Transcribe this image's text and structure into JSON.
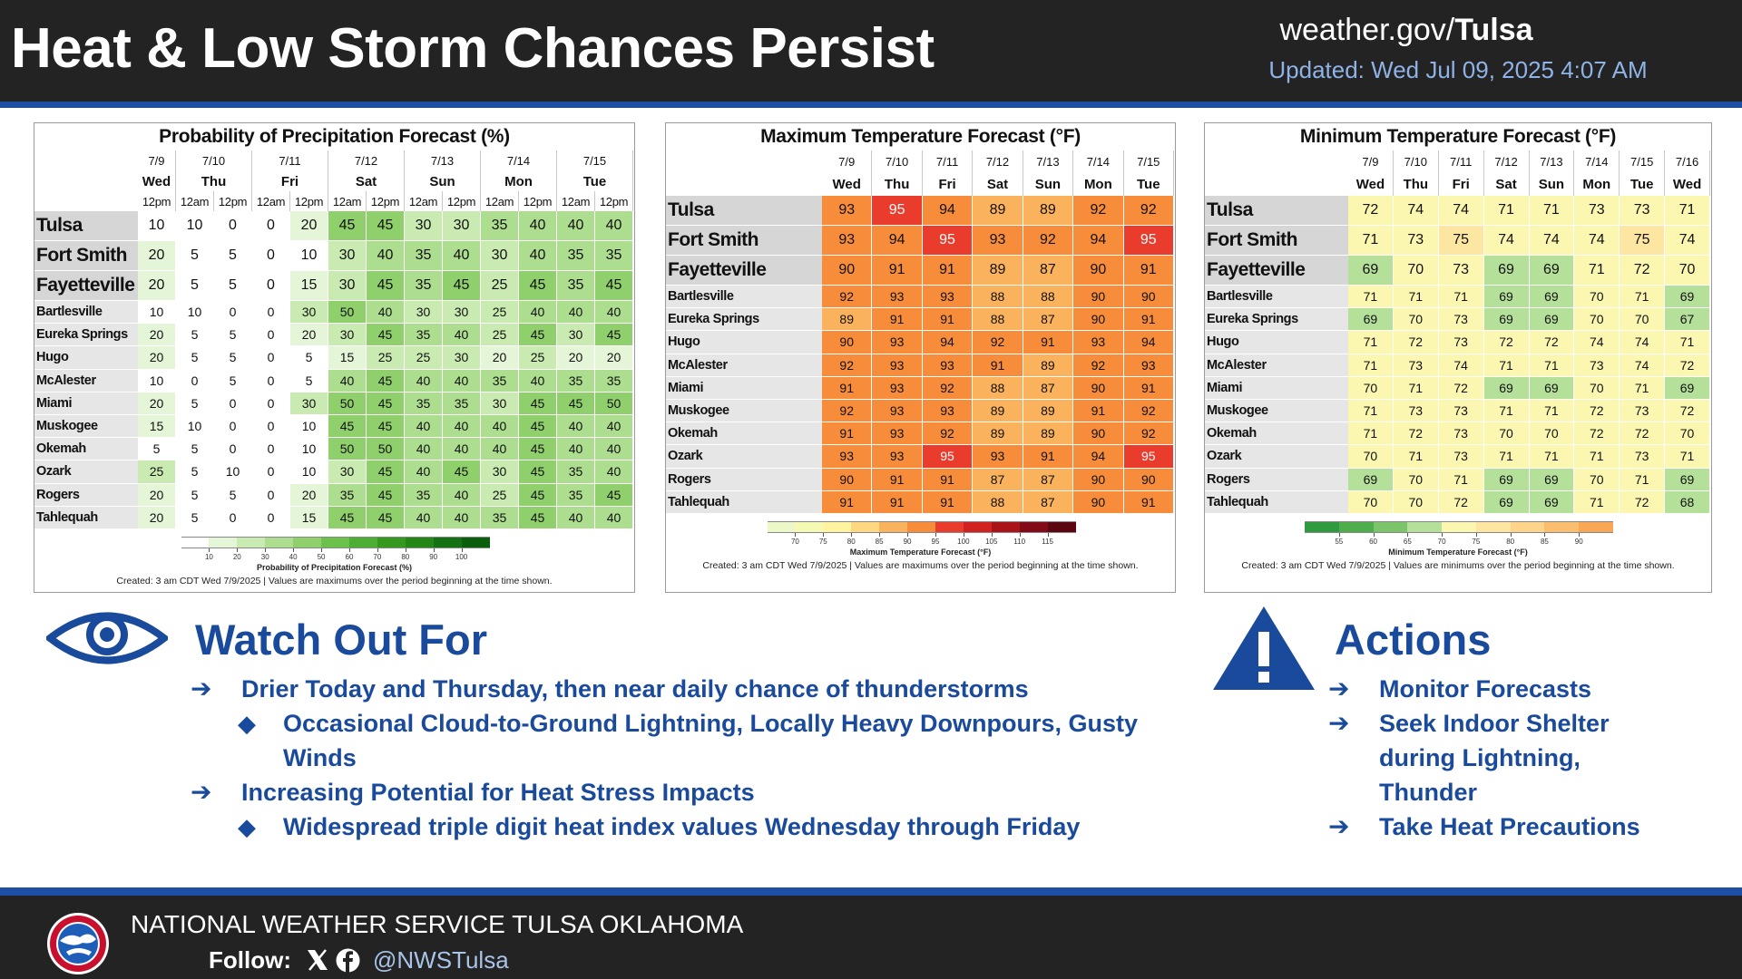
{
  "header": {
    "title": "Heat & Low Storm Chances Persist",
    "site_prefix": "weather.gov/",
    "site_office": "Tulsa",
    "updated": "Updated: Wed Jul 09, 2025 4:07 AM"
  },
  "tables": [
    {
      "title": "Probability of Precipitation Forecast (%)",
      "columns": [
        {
          "date": "7/9",
          "day": "Wed",
          "times": [
            "12pm"
          ]
        },
        {
          "date": "7/10",
          "day": "Thu",
          "times": [
            "12am",
            "12pm"
          ]
        },
        {
          "date": "7/11",
          "day": "Fri",
          "times": [
            "12am",
            "12pm"
          ]
        },
        {
          "date": "7/12",
          "day": "Sat",
          "times": [
            "12am",
            "12pm"
          ]
        },
        {
          "date": "7/13",
          "day": "Sun",
          "times": [
            "12am",
            "12pm"
          ]
        },
        {
          "date": "7/14",
          "day": "Mon",
          "times": [
            "12am",
            "12pm"
          ]
        },
        {
          "date": "7/15",
          "day": "Tue",
          "times": [
            "12am",
            "12pm"
          ]
        }
      ],
      "rows": [
        {
          "name": "Tulsa",
          "values": [
            10,
            10,
            0,
            0,
            20,
            45,
            45,
            30,
            30,
            35,
            40,
            40,
            40
          ]
        },
        {
          "name": "Fort Smith",
          "values": [
            20,
            5,
            5,
            0,
            10,
            30,
            40,
            35,
            40,
            30,
            40,
            35,
            35
          ]
        },
        {
          "name": "Fayetteville",
          "values": [
            20,
            5,
            5,
            0,
            15,
            30,
            45,
            35,
            45,
            25,
            45,
            35,
            45
          ]
        },
        {
          "name": "Bartlesville",
          "values": [
            10,
            10,
            0,
            0,
            30,
            50,
            40,
            30,
            30,
            25,
            40,
            40,
            40
          ]
        },
        {
          "name": "Eureka Springs",
          "values": [
            20,
            5,
            5,
            0,
            20,
            30,
            45,
            35,
            40,
            25,
            45,
            30,
            45
          ]
        },
        {
          "name": "Hugo",
          "values": [
            20,
            5,
            5,
            0,
            5,
            15,
            25,
            25,
            30,
            20,
            25,
            20,
            20
          ]
        },
        {
          "name": "McAlester",
          "values": [
            10,
            0,
            5,
            0,
            5,
            40,
            45,
            40,
            40,
            35,
            40,
            35,
            35
          ]
        },
        {
          "name": "Miami",
          "values": [
            20,
            5,
            0,
            0,
            30,
            50,
            45,
            35,
            35,
            30,
            45,
            45,
            50
          ]
        },
        {
          "name": "Muskogee",
          "values": [
            15,
            10,
            0,
            0,
            10,
            45,
            45,
            40,
            40,
            40,
            45,
            40,
            40
          ]
        },
        {
          "name": "Okemah",
          "values": [
            5,
            5,
            0,
            0,
            10,
            50,
            50,
            40,
            40,
            40,
            45,
            40,
            40
          ]
        },
        {
          "name": "Ozark",
          "values": [
            25,
            5,
            10,
            0,
            10,
            30,
            45,
            40,
            45,
            30,
            45,
            35,
            40
          ]
        },
        {
          "name": "Rogers",
          "values": [
            20,
            5,
            5,
            0,
            20,
            35,
            45,
            35,
            40,
            25,
            45,
            35,
            45
          ]
        },
        {
          "name": "Tahlequah",
          "values": [
            20,
            5,
            0,
            0,
            15,
            45,
            45,
            40,
            40,
            35,
            45,
            40,
            40
          ]
        }
      ],
      "legend": {
        "label": "Probability of Precipitation Forecast (%)",
        "ticks": [
          10,
          20,
          30,
          40,
          50,
          60,
          70,
          80,
          90,
          100
        ],
        "closed": "left",
        "colors": [
          "#ffffff",
          "#e5f5d8",
          "#c9eab0",
          "#addd8e",
          "#8fd06c",
          "#6cc04c",
          "#4cae34",
          "#35991f",
          "#238615",
          "#147212",
          "#0b5e0b"
        ]
      },
      "footer": "Created: 3 am CDT Wed 7/9/2025  |  Values are maximums over the period beginning at the time shown."
    },
    {
      "title": "Maximum Temperature Forecast (°F)",
      "columns": [
        {
          "date": "7/9",
          "day": "Wed"
        },
        {
          "date": "7/10",
          "day": "Thu"
        },
        {
          "date": "7/11",
          "day": "Fri"
        },
        {
          "date": "7/12",
          "day": "Sat"
        },
        {
          "date": "7/13",
          "day": "Sun"
        },
        {
          "date": "7/14",
          "day": "Mon"
        },
        {
          "date": "7/15",
          "day": "Tue"
        }
      ],
      "rows": [
        {
          "name": "Tulsa",
          "values": [
            93,
            95,
            94,
            89,
            89,
            92,
            92
          ]
        },
        {
          "name": "Fort Smith",
          "values": [
            93,
            94,
            95,
            93,
            92,
            94,
            95
          ]
        },
        {
          "name": "Fayetteville",
          "values": [
            90,
            91,
            91,
            89,
            87,
            90,
            91
          ]
        },
        {
          "name": "Bartlesville",
          "values": [
            92,
            93,
            93,
            88,
            88,
            90,
            90
          ]
        },
        {
          "name": "Eureka Springs",
          "values": [
            89,
            91,
            91,
            88,
            87,
            90,
            91
          ]
        },
        {
          "name": "Hugo",
          "values": [
            90,
            93,
            94,
            92,
            91,
            93,
            94
          ]
        },
        {
          "name": "McAlester",
          "values": [
            92,
            93,
            93,
            91,
            89,
            92,
            93
          ]
        },
        {
          "name": "Miami",
          "values": [
            91,
            93,
            92,
            88,
            87,
            90,
            91
          ]
        },
        {
          "name": "Muskogee",
          "values": [
            92,
            93,
            93,
            89,
            89,
            91,
            92
          ]
        },
        {
          "name": "Okemah",
          "values": [
            91,
            93,
            92,
            89,
            89,
            90,
            92
          ]
        },
        {
          "name": "Ozark",
          "values": [
            93,
            93,
            95,
            93,
            91,
            94,
            95
          ]
        },
        {
          "name": "Rogers",
          "values": [
            90,
            91,
            91,
            87,
            87,
            90,
            90
          ]
        },
        {
          "name": "Tahlequah",
          "values": [
            91,
            91,
            91,
            88,
            87,
            90,
            91
          ]
        }
      ],
      "legend": {
        "label": "Maximum Temperature Forecast (°F)",
        "ticks": [
          70,
          75,
          80,
          85,
          90,
          95,
          100,
          105,
          110,
          115
        ],
        "closed": "right",
        "colors": [
          "#edf8c8",
          "#f6f9b4",
          "#fff3a0",
          "#fed880",
          "#fbb25c",
          "#f78c3a",
          "#ea3c2c",
          "#d1221f",
          "#aa1419",
          "#820b17",
          "#5c0612"
        ]
      },
      "footer": "Created: 3 am CDT Wed 7/9/2025  |  Values are maximums over the period beginning at the time shown."
    },
    {
      "title": "Minimum Temperature Forecast (°F)",
      "columns": [
        {
          "date": "7/9",
          "day": "Wed"
        },
        {
          "date": "7/10",
          "day": "Thu"
        },
        {
          "date": "7/11",
          "day": "Fri"
        },
        {
          "date": "7/12",
          "day": "Sat"
        },
        {
          "date": "7/13",
          "day": "Sun"
        },
        {
          "date": "7/14",
          "day": "Mon"
        },
        {
          "date": "7/15",
          "day": "Tue"
        },
        {
          "date": "7/16",
          "day": "Wed"
        }
      ],
      "rows": [
        {
          "name": "Tulsa",
          "values": [
            72,
            74,
            74,
            71,
            71,
            73,
            73,
            71
          ]
        },
        {
          "name": "Fort Smith",
          "values": [
            71,
            73,
            75,
            74,
            74,
            74,
            75,
            74
          ]
        },
        {
          "name": "Fayetteville",
          "values": [
            69,
            70,
            73,
            69,
            69,
            71,
            72,
            70
          ]
        },
        {
          "name": "Bartlesville",
          "values": [
            71,
            71,
            71,
            69,
            69,
            70,
            71,
            69
          ]
        },
        {
          "name": "Eureka Springs",
          "values": [
            69,
            70,
            73,
            69,
            69,
            70,
            70,
            67
          ]
        },
        {
          "name": "Hugo",
          "values": [
            71,
            72,
            73,
            72,
            72,
            74,
            74,
            71
          ]
        },
        {
          "name": "McAlester",
          "values": [
            71,
            73,
            74,
            71,
            71,
            73,
            74,
            72
          ]
        },
        {
          "name": "Miami",
          "values": [
            70,
            71,
            72,
            69,
            69,
            70,
            71,
            69
          ]
        },
        {
          "name": "Muskogee",
          "values": [
            71,
            73,
            73,
            71,
            71,
            72,
            73,
            72
          ]
        },
        {
          "name": "Okemah",
          "values": [
            71,
            72,
            73,
            70,
            70,
            72,
            72,
            70
          ]
        },
        {
          "name": "Ozark",
          "values": [
            70,
            71,
            73,
            71,
            71,
            71,
            73,
            71
          ]
        },
        {
          "name": "Rogers",
          "values": [
            69,
            70,
            71,
            69,
            69,
            70,
            71,
            69
          ]
        },
        {
          "name": "Tahlequah",
          "values": [
            70,
            70,
            72,
            69,
            69,
            71,
            72,
            68
          ]
        }
      ],
      "legend": {
        "label": "Minimum Temperature Forecast (°F)",
        "ticks": [
          55,
          60,
          65,
          70,
          75,
          80,
          85,
          90
        ],
        "closed": "right",
        "colors": [
          "#2f9a3e",
          "#4fae4c",
          "#7cc46a",
          "#b5e09a",
          "#fbf6b0",
          "#fde6a2",
          "#fdd48a",
          "#fbbe6e",
          "#f8a855"
        ]
      },
      "footer": "Created: 3 am CDT Wed 7/9/2025  |  Values are minimums over the period beginning at the time shown."
    }
  ],
  "watch": {
    "heading": "Watch Out For",
    "items": [
      {
        "text": "Drier Today and Thursday, then near daily chance of thunderstorms",
        "level": 1
      },
      {
        "text": "Occasional Cloud-to-Ground Lightning, Locally Heavy Downpours, Gusty Winds",
        "level": 2
      },
      {
        "text": "Increasing Potential for Heat Stress Impacts",
        "level": 1
      },
      {
        "text": "Widespread triple digit heat index values Wednesday through Friday",
        "level": 2
      }
    ]
  },
  "actions": {
    "heading": "Actions",
    "items": [
      "Monitor Forecasts",
      "Seek Indoor Shelter during Lightning, Thunder",
      "Take Heat Precautions"
    ]
  },
  "footer": {
    "org": "NATIONAL WEATHER SERVICE TULSA OKLAHOMA",
    "follow": "Follow:",
    "handle": "@NWSTulsa"
  }
}
